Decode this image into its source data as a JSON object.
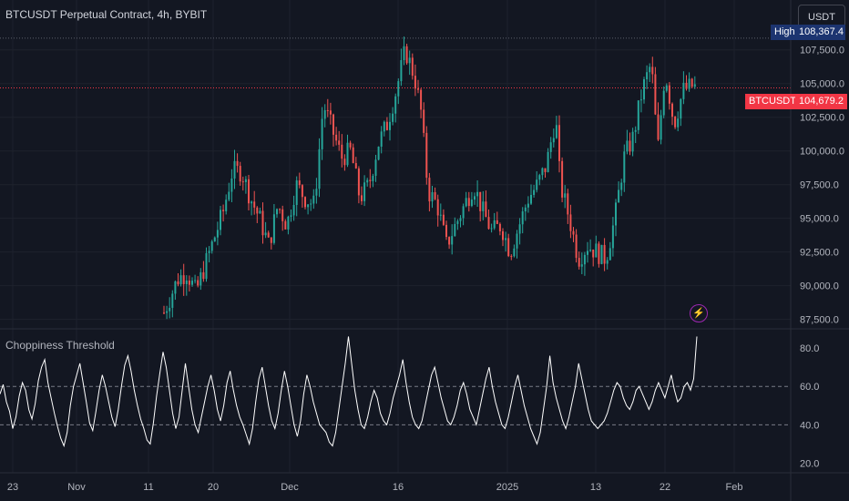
{
  "header": {
    "title": "BTCUSDT Perpetual Contract, 4h, BYBIT",
    "currency": "USDT"
  },
  "price_scale": {
    "high_label": "High",
    "high_value": "108,367.4",
    "symbol_tag": "BTCUSDT.P",
    "last_price": "104,679.2"
  },
  "indicator": {
    "name": "Choppiness Threshold"
  },
  "icons": {
    "alert": "lightning-bolt-icon"
  },
  "colors": {
    "background": "#131722",
    "up": "#26a69a",
    "down": "#ef5350",
    "indicator_line": "#ffffff",
    "price_line": "#f23645",
    "high_tag": "#1c3470"
  },
  "chart_data": [
    {
      "type": "candlestick",
      "title": "BTCUSDT Perpetual Contract, 4h, BYBIT",
      "x_tick_labels": [
        "23",
        "Nov",
        "11",
        "20",
        "Dec",
        "16",
        "2025",
        "13",
        "22",
        "Feb"
      ],
      "y_ticks": [
        87500,
        90000,
        92500,
        95000,
        97500,
        100000,
        102500,
        105000,
        107500
      ],
      "y_tick_labels": [
        "87,500.0",
        "90,000.0",
        "92,500.0",
        "95,000.0",
        "97,500.0",
        "100,000.0",
        "102,500.0",
        "105,000.0",
        "107,500.0"
      ],
      "ylim": [
        86800,
        111200
      ],
      "last_price": 104679.2,
      "high": 108367.4,
      "series_close_approx": [
        [
          0.18,
          88000
        ],
        [
          0.195,
          90500
        ],
        [
          0.205,
          91000
        ],
        [
          0.215,
          89500
        ],
        [
          0.23,
          92500
        ],
        [
          0.245,
          95500
        ],
        [
          0.255,
          98500
        ],
        [
          0.265,
          98500
        ],
        [
          0.275,
          96500
        ],
        [
          0.285,
          95000
        ],
        [
          0.295,
          93000
        ],
        [
          0.305,
          96000
        ],
        [
          0.315,
          94500
        ],
        [
          0.325,
          97500
        ],
        [
          0.335,
          96500
        ],
        [
          0.345,
          96000
        ],
        [
          0.355,
          103500
        ],
        [
          0.365,
          101500
        ],
        [
          0.375,
          99500
        ],
        [
          0.385,
          100000
        ],
        [
          0.395,
          96500
        ],
        [
          0.405,
          97500
        ],
        [
          0.415,
          100500
        ],
        [
          0.425,
          102000
        ],
        [
          0.435,
          104500
        ],
        [
          0.445,
          107500
        ],
        [
          0.455,
          105500
        ],
        [
          0.462,
          103000
        ],
        [
          0.47,
          97000
        ],
        [
          0.48,
          96000
        ],
        [
          0.49,
          93000
        ],
        [
          0.5,
          94500
        ],
        [
          0.51,
          96000
        ],
        [
          0.52,
          97500
        ],
        [
          0.53,
          95500
        ],
        [
          0.54,
          94000
        ],
        [
          0.55,
          94500
        ],
        [
          0.56,
          92500
        ],
        [
          0.57,
          94500
        ],
        [
          0.58,
          96500
        ],
        [
          0.59,
          97500
        ],
        [
          0.6,
          99000
        ],
        [
          0.61,
          102500
        ],
        [
          0.615,
          97500
        ],
        [
          0.625,
          95000
        ],
        [
          0.635,
          92000
        ],
        [
          0.645,
          93000
        ],
        [
          0.655,
          92500
        ],
        [
          0.665,
          92000
        ],
        [
          0.675,
          95000
        ],
        [
          0.685,
          99500
        ],
        [
          0.695,
          101000
        ],
        [
          0.705,
          104500
        ],
        [
          0.715,
          106500
        ],
        [
          0.722,
          100000
        ],
        [
          0.73,
          106000
        ],
        [
          0.74,
          102000
        ],
        [
          0.75,
          104500
        ],
        [
          0.76,
          104800
        ],
        [
          0.765,
          104679
        ]
      ]
    },
    {
      "type": "line",
      "title": "Choppiness Threshold",
      "y_ticks": [
        20,
        40,
        60,
        80
      ],
      "y_tick_labels": [
        "20.0",
        "40.0",
        "60.0",
        "80.0"
      ],
      "ylim": [
        15,
        90
      ],
      "thresholds": [
        40,
        60
      ],
      "values": [
        56,
        61,
        52,
        47,
        38,
        44,
        55,
        62,
        58,
        48,
        43,
        51,
        63,
        70,
        74,
        62,
        54,
        46,
        39,
        33,
        29,
        36,
        50,
        60,
        66,
        72,
        62,
        52,
        41,
        37,
        47,
        58,
        66,
        60,
        52,
        44,
        39,
        48,
        60,
        71,
        76,
        68,
        58,
        50,
        43,
        38,
        32,
        30,
        41,
        55,
        67,
        78,
        70,
        58,
        46,
        38,
        44,
        58,
        72,
        60,
        48,
        40,
        36,
        44,
        52,
        60,
        66,
        58,
        48,
        42,
        50,
        62,
        68,
        58,
        50,
        44,
        40,
        35,
        30,
        38,
        52,
        64,
        70,
        60,
        50,
        42,
        38,
        46,
        58,
        68,
        60,
        50,
        40,
        34,
        42,
        56,
        66,
        60,
        52,
        46,
        40,
        38,
        36,
        31,
        29,
        36,
        48,
        60,
        72,
        86,
        72,
        58,
        48,
        40,
        38,
        44,
        52,
        58,
        54,
        46,
        42,
        40,
        46,
        54,
        60,
        66,
        74,
        62,
        52,
        44,
        40,
        38,
        42,
        50,
        58,
        66,
        70,
        62,
        54,
        48,
        42,
        40,
        44,
        50,
        58,
        62,
        56,
        48,
        44,
        40,
        48,
        56,
        64,
        70,
        60,
        52,
        46,
        40,
        38,
        44,
        52,
        60,
        66,
        58,
        50,
        44,
        38,
        34,
        30,
        36,
        48,
        60,
        76,
        62,
        54,
        48,
        42,
        38,
        44,
        52,
        60,
        72,
        64,
        56,
        48,
        42,
        40,
        38,
        40,
        42,
        46,
        52,
        58,
        62,
        60,
        54,
        50,
        48,
        52,
        58,
        60,
        56,
        52,
        48,
        52,
        58,
        62,
        58,
        54,
        60,
        66,
        58,
        52,
        54,
        60,
        62,
        58,
        64,
        86
      ]
    }
  ]
}
